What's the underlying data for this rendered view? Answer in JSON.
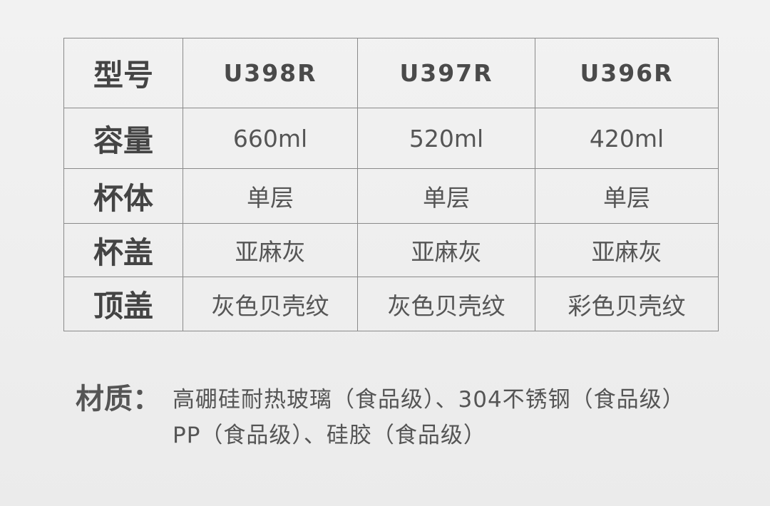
{
  "table": {
    "rows": [
      {
        "label": "型号",
        "values": [
          "U398R",
          "U397R",
          "U396R"
        ]
      },
      {
        "label": "容量",
        "values": [
          "660ml",
          "520ml",
          "420ml"
        ]
      },
      {
        "label": "杯体",
        "values": [
          "单层",
          "单层",
          "单层"
        ]
      },
      {
        "label": "杯盖",
        "values": [
          "亚麻灰",
          "亚麻灰",
          "亚麻灰"
        ]
      },
      {
        "label": "顶盖",
        "values": [
          "灰色贝壳纹",
          "灰色贝壳纹",
          "彩色贝壳纹"
        ]
      }
    ]
  },
  "material": {
    "label": "材质：",
    "line1": "高硼硅耐热玻璃（食品级）、304不锈钢（食品级）",
    "line2": "PP（食品级）、硅胶（食品级）"
  }
}
